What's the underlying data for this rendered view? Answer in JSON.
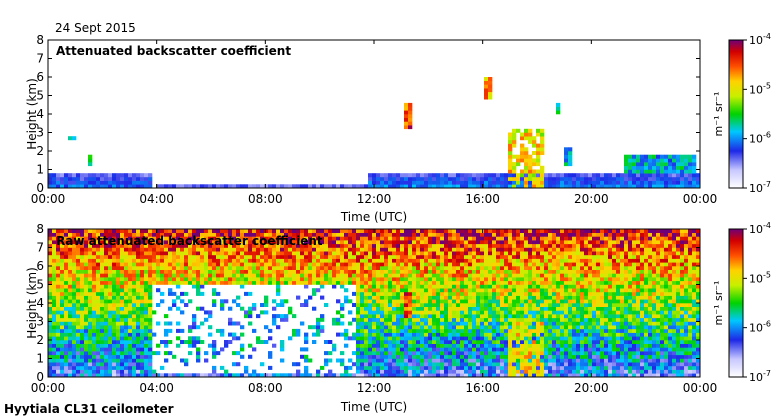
{
  "date_label": "24 Sept 2015",
  "instrument_label": "Hyytiala CL31 ceilometer",
  "chart_data": [
    {
      "type": "heatmap",
      "title": "Attenuated backscatter coefficient",
      "xlabel": "Time (UTC)",
      "ylabel": "Height (km)",
      "xlim": [
        "00:00",
        "00:00"
      ],
      "ylim": [
        0,
        8
      ],
      "x_ticks": [
        "00:00",
        "04:00",
        "08:00",
        "12:00",
        "16:00",
        "20:00",
        "00:00"
      ],
      "y_ticks": [
        "0",
        "1",
        "2",
        "3",
        "4",
        "5",
        "6",
        "7",
        "8"
      ],
      "colorbar": {
        "label": "m⁻¹ sr⁻¹",
        "scale": "log",
        "range": [
          1e-07,
          0.0001
        ],
        "ticks": [
          {
            "base": "10",
            "exp": "-4"
          },
          {
            "base": "10",
            "exp": "-5"
          },
          {
            "base": "10",
            "exp": "-6"
          },
          {
            "base": "10",
            "exp": "-7"
          }
        ]
      },
      "features": [
        {
          "type": "boundary_layer",
          "t_start_h": 0,
          "t_end_h": 3.8,
          "top_km": 0.75,
          "level": 0.2
        },
        {
          "type": "boundary_layer",
          "t_start_h": 4.0,
          "t_end_h": 11.8,
          "top_km": 0.25,
          "level": 0.12
        },
        {
          "type": "boundary_layer",
          "t_start_h": 11.8,
          "t_end_h": 24,
          "top_km": 0.7,
          "level": 0.22
        },
        {
          "type": "cloud",
          "t_start_h": 0.7,
          "t_end_h": 1.0,
          "bottom_km": 2.6,
          "top_km": 2.8,
          "level": 0.5
        },
        {
          "type": "cloud",
          "t_start_h": 1.4,
          "t_end_h": 1.6,
          "bottom_km": 1.3,
          "top_km": 1.7,
          "level": 0.5
        },
        {
          "type": "cloud",
          "t_start_h": 13.1,
          "t_end_h": 13.35,
          "bottom_km": 3.3,
          "top_km": 4.6,
          "level": 0.85
        },
        {
          "type": "cloud",
          "t_start_h": 16.1,
          "t_end_h": 16.3,
          "bottom_km": 4.8,
          "top_km": 5.9,
          "level": 0.75
        },
        {
          "type": "cloud",
          "t_start_h": 18.7,
          "t_end_h": 18.8,
          "bottom_km": 4.1,
          "top_km": 4.5,
          "level": 0.45
        },
        {
          "type": "precipitation",
          "t_start_h": 17.0,
          "t_end_h": 18.2,
          "bottom_km": 0,
          "top_km": 3.2,
          "level": 0.68
        },
        {
          "type": "cloud",
          "t_start_h": 19.0,
          "t_end_h": 19.3,
          "bottom_km": 1.3,
          "top_km": 2.1,
          "level": 0.4
        },
        {
          "type": "cloud",
          "t_start_h": 21.2,
          "t_end_h": 23.8,
          "bottom_km": 0.9,
          "top_km": 1.8,
          "level": 0.38
        }
      ]
    },
    {
      "type": "heatmap",
      "title": "Raw attenuated backscatter coefficient",
      "xlabel": "Time (UTC)",
      "ylabel": "Height (km)",
      "xlim": [
        "00:00",
        "00:00"
      ],
      "ylim": [
        0,
        8
      ],
      "x_ticks": [
        "00:00",
        "04:00",
        "08:00",
        "12:00",
        "16:00",
        "20:00",
        "00:00"
      ],
      "y_ticks": [
        "0",
        "1",
        "2",
        "3",
        "4",
        "5",
        "6",
        "7",
        "8"
      ],
      "colorbar": {
        "label": "m⁻¹ sr⁻¹",
        "scale": "log",
        "range": [
          1e-07,
          0.0001
        ],
        "ticks": [
          {
            "base": "10",
            "exp": "-4"
          },
          {
            "base": "10",
            "exp": "-5"
          },
          {
            "base": "10",
            "exp": "-6"
          },
          {
            "base": "10",
            "exp": "-7"
          }
        ]
      },
      "features": [
        {
          "type": "noise_gradient",
          "level_at_0km": 0.25,
          "level_at_8km": 0.9
        },
        {
          "type": "low_signal_region",
          "t_start_h": 3.8,
          "t_end_h": 11.4,
          "bottom_km": 0.2,
          "top_km": 5.0
        },
        {
          "type": "precipitation",
          "t_start_h": 17.0,
          "t_end_h": 18.2,
          "bottom_km": 0,
          "top_km": 3.0,
          "level": 0.68
        },
        {
          "type": "cloud",
          "t_start_h": 13.1,
          "t_end_h": 13.35,
          "bottom_km": 3.3,
          "top_km": 4.6,
          "level": 0.85
        }
      ]
    }
  ]
}
